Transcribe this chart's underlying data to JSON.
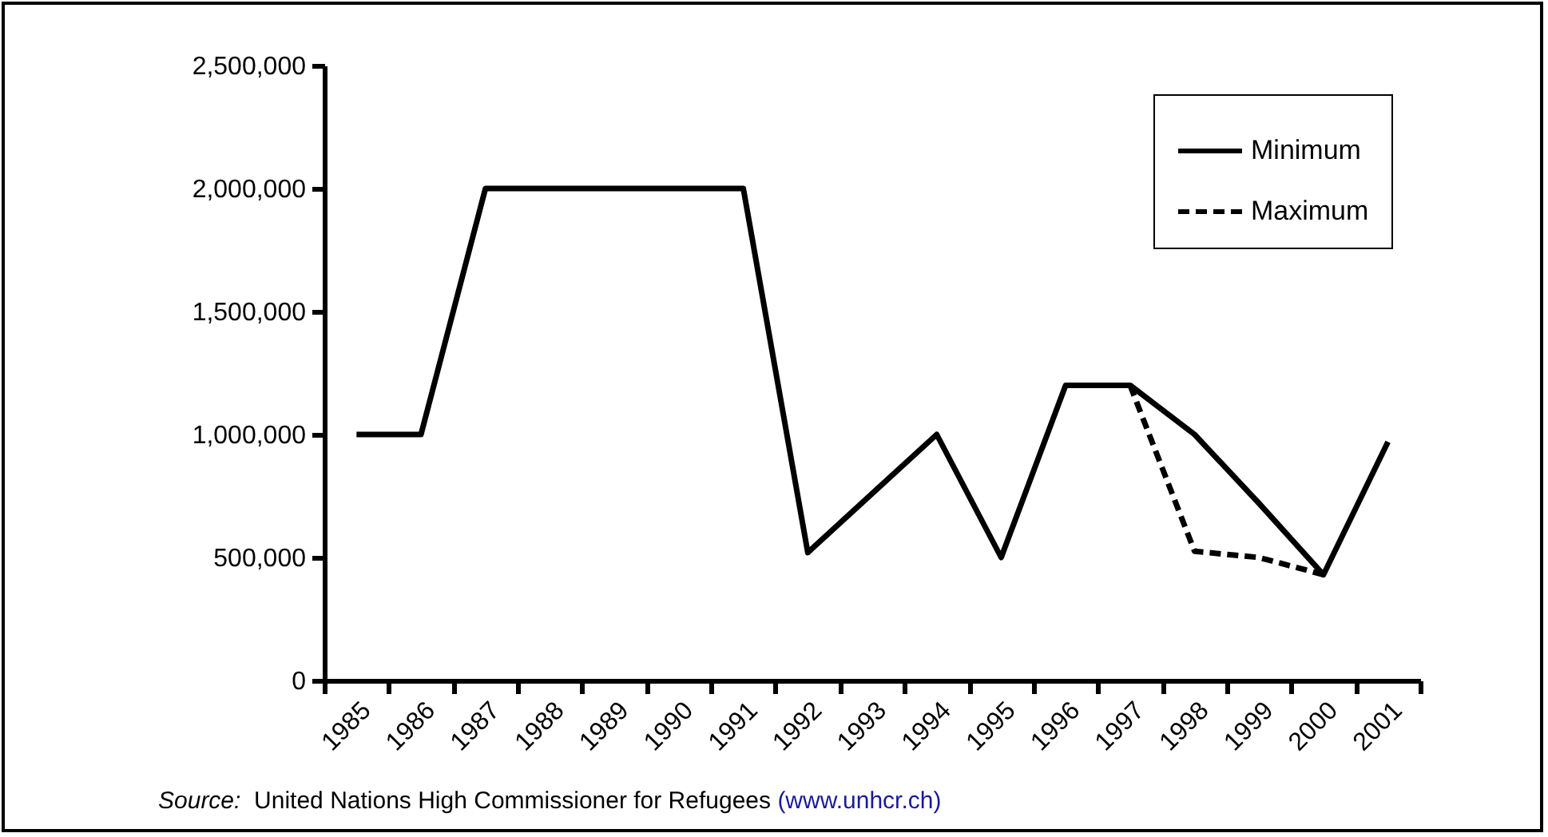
{
  "chart_data": {
    "type": "line",
    "categories": [
      "1985",
      "1986",
      "1987",
      "1988",
      "1989",
      "1990",
      "1991",
      "1992",
      "1993",
      "1994",
      "1995",
      "1996",
      "1997",
      "1998",
      "1999",
      "2000",
      "2001"
    ],
    "series": [
      {
        "name": "Minimum",
        "color": "#000000",
        "line_style": "solid",
        "values": [
          1000000,
          1000000,
          2000000,
          2000000,
          2000000,
          2000000,
          2000000,
          520000,
          760000,
          1000000,
          500000,
          1200000,
          1200000,
          1000000,
          720000,
          430000,
          970000
        ]
      },
      {
        "name": "Maximum",
        "color": "#000000",
        "line_style": "dashed",
        "values": [
          null,
          null,
          null,
          null,
          null,
          null,
          null,
          null,
          null,
          null,
          null,
          null,
          1200000,
          525000,
          500000,
          430000,
          null
        ]
      }
    ],
    "ylim": [
      0,
      2500000
    ],
    "yticks": [
      0,
      {
        "value": 500000,
        "label": "500,000"
      },
      {
        "value": 1000000,
        "label": "1,000,000"
      },
      {
        "value": 1500000,
        "label": "1,500,000"
      },
      {
        "value": 2000000,
        "label": "2,000,000"
      },
      {
        "value": 2500000,
        "label": "2,500,000"
      }
    ],
    "grid": false,
    "legend": "top right",
    "marker": "none",
    "annotations": [
      "Source:  United Nations High Commissioner for Refugees (www.unhcr.ch)"
    ]
  }
}
